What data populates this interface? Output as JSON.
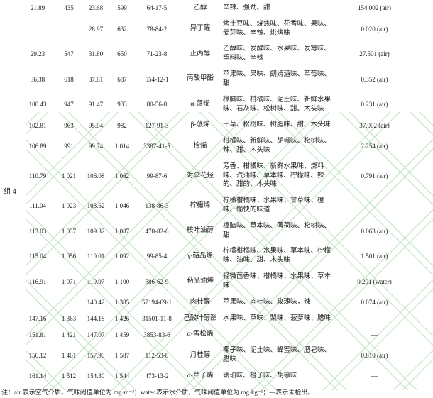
{
  "page": {
    "group_label": "组 4",
    "footnote": "注：air 表示空气介质，气味阈值单位为 mg·m⁻³；water 表示水介质，气味阈值单位为 mg·kg⁻¹；—表示未检出。"
  },
  "table": {
    "rows": [
      {
        "rt1": "21.89",
        "ri1": "435",
        "rt2": "23.68",
        "ri2": "599",
        "cas": "64-17-5",
        "name": "乙醇",
        "odor": "辛辣、强劲、甜",
        "threshold": "154.002 (air)"
      },
      {
        "rt1": "",
        "ri1": "",
        "rt2": "28.97",
        "ri2": "632",
        "cas": "78-84-2",
        "name": "异丁醛",
        "odor": "烤土豆味、烧焦味、花香味、果味、麦芽味、辛辣、烘烤味",
        "threshold": "0.020 (air)"
      },
      {
        "rt1": "29.23",
        "ri1": "547",
        "rt2": "31.80",
        "ri2": "650",
        "cas": "71-23-8",
        "name": "正丙醇",
        "odor": "乙醇味、发酵味、水果味、发霉味、塑料味、辛辣",
        "threshold": "27.501 (air)"
      },
      {
        "rt1": "36.38",
        "ri1": "618",
        "rt2": "37.81",
        "ri2": "687",
        "cas": "554-12-1",
        "name": "丙酸甲酯",
        "odor": "苹果味、果味、朗姆酒味、草莓味、甜",
        "threshold": "0.352 (air)"
      },
      {
        "rt1": "100.43",
        "ri1": "947",
        "rt2": "91.47",
        "ri2": "933",
        "cas": "80-56-8",
        "name": "α-蒎烯",
        "odor": "樟脑味、柑橘味、泥土味、新鲜水果味、石灰味、松树味、甜、木头味",
        "threshold": "0.231 (air)"
      },
      {
        "rt1": "102.81",
        "ri1": "963",
        "rt2": "95.04",
        "ri2": "982",
        "cas": "127-91-3",
        "name": "β-蒎烯",
        "odor": "干草、松树味、树脂味、甜、木头味",
        "threshold": "37.002 (air)"
      },
      {
        "rt1": "106.89",
        "ri1": "991",
        "rt2": "99.74",
        "ri2": "1 014",
        "cas": "3387-41-5",
        "name": "桧烯",
        "odor": "柑橘味、新鲜味、胡椒味、松树味、辣、甜、木头味",
        "threshold": "2.254 (air)"
      },
      {
        "rt1": "110.79",
        "ri1": "1 021",
        "rt2": "106.08",
        "ri2": "1 062",
        "cas": "99-87-6",
        "name": "对伞花烃",
        "odor": "芳香、柑橘味、新鲜水果味、燃料味、汽油味、草本味、柠檬味、辣的、甜的、木头味",
        "threshold": "0.791 (air)"
      },
      {
        "rt1": "111.04",
        "ri1": "1 023",
        "rt2": "103.62",
        "ri2": "1 046",
        "cas": "138-86-3",
        "name": "柠檬烯",
        "odor": "柠檬柑橘味、水果味、甘草味、橙味、愉快的味道",
        "threshold": "—"
      },
      {
        "rt1": "113.03",
        "ri1": "1 037",
        "rt2": "109.32",
        "ri2": "1 087",
        "cas": "470-82-6",
        "name": "桉叶油醇",
        "odor": "樟脑味、草本味、薄荷味、松树味、甜",
        "threshold": "0.063 (air)"
      },
      {
        "rt1": "115.04",
        "ri1": "1 056",
        "rt2": "110.01",
        "ri2": "1 092",
        "cas": "99-85-4",
        "name": "γ-萜品烯",
        "odor": "柠檬柑橘味、水果味、草本味、柠檬味、油味、甜、木头味",
        "threshold": "1.501 (air)"
      },
      {
        "rt1": "116.91",
        "ri1": "1 071",
        "rt2": "110.97",
        "ri2": "1 100",
        "cas": "586-62-9",
        "name": "萜品油烯",
        "odor": "轻微茴香味、柑橘味、水果味、草本味",
        "threshold": "0.201 (water)"
      },
      {
        "rt1": "",
        "ri1": "",
        "rt2": "140.42",
        "ri2": "1 385",
        "cas": "57194-69-1",
        "name": "肉桂醛",
        "odor": "苹果味、肉桂味、玫瑰味，辣",
        "threshold": "0.074 (air)"
      },
      {
        "rt1": "147.16",
        "ri1": "1 363",
        "rt2": "144.18",
        "ri2": "1 426",
        "cas": "31501-11-8",
        "name": "己酸叶醇酯",
        "odor": "水果味、草味、梨味、菠萝味、腊味",
        "threshold": "—"
      },
      {
        "rt1": "151.81",
        "ri1": "1 421",
        "rt2": "147.07",
        "ri2": "1 459",
        "cas": "3853-83-6",
        "name": "α-雪松烯",
        "odor": "",
        "threshold": "—"
      },
      {
        "rt1": "156.12",
        "ri1": "1 461",
        "rt2": "157.90",
        "ri2": "1 587",
        "cas": "112-53-8",
        "name": "月桂醇",
        "odor": "椰子味、泥土味、蜂蜜味、肥皂味、腊味",
        "threshold": "0.810 (air)"
      },
      {
        "rt1": "161.14",
        "ri1": "1 512",
        "rt2": "154.30",
        "ri2": "1 544",
        "cas": "473-13-2",
        "name": "α-芹子烯",
        "odor": "琥珀味、橙子味、胡椒味",
        "threshold": "—"
      }
    ]
  }
}
